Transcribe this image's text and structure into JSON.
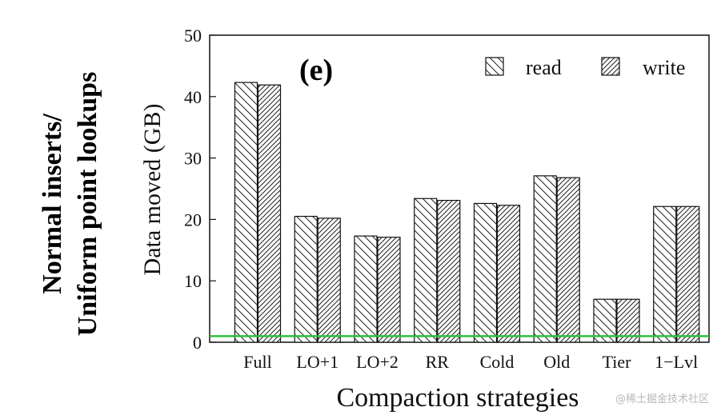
{
  "chart_data": {
    "type": "bar",
    "panel_label": "(e)",
    "side_title_lines": [
      "Normal inserts/",
      "Uniform point lookups"
    ],
    "xlabel": "Compaction strategies",
    "ylabel": "Data moved (GB)",
    "ylim": [
      0,
      50
    ],
    "yticks": [
      0,
      10,
      20,
      30,
      40,
      50
    ],
    "categories": [
      "Full",
      "LO+1",
      "LO+2",
      "RR",
      "Cold",
      "Old",
      "Tier",
      "1−Lvl"
    ],
    "series": [
      {
        "name": "read",
        "values": [
          42.3,
          20.5,
          17.3,
          23.4,
          22.6,
          27.1,
          7.0,
          22.1
        ],
        "pattern": "back-diagonal"
      },
      {
        "name": "write",
        "values": [
          41.9,
          20.2,
          17.1,
          23.1,
          22.3,
          26.8,
          7.0,
          22.1
        ],
        "pattern": "diagonal"
      }
    ],
    "reference_line": {
      "value": 1.0,
      "color": "#2fbf3a"
    },
    "legend_position": "top-right",
    "grid": false
  },
  "watermark": "@稀土掘金技术社区"
}
